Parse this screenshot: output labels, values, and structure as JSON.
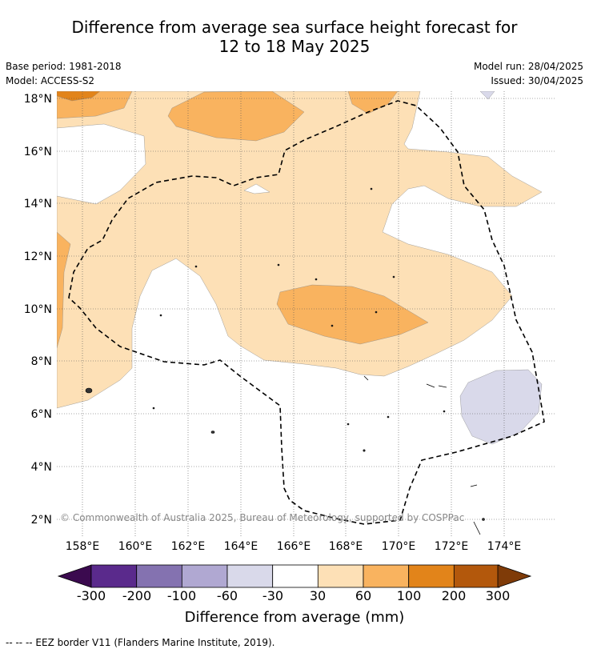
{
  "title_line1": "Difference from average sea surface height forecast for",
  "title_line2": "12 to 18 May 2025",
  "base_period": "Base period: 1981-2018",
  "model": "Model: ACCESS-S2",
  "model_run": "Model run: 28/04/2025",
  "issued": "Issued: 30/04/2025",
  "copyright": "© Commonwealth of Australia 2025, Bureau of Meteorology, supported by COSPPac",
  "lat_labels": [
    "18°N",
    "16°N",
    "14°N",
    "12°N",
    "10°N",
    "8°N",
    "6°N",
    "4°N",
    "2°N"
  ],
  "lon_labels": [
    "158°E",
    "160°E",
    "162°E",
    "164°E",
    "166°E",
    "168°E",
    "170°E",
    "172°E",
    "174°E"
  ],
  "colorbar": {
    "title": "Difference from average (mm)",
    "ticks": [
      "-300",
      "-200",
      "-100",
      "-60",
      "-30",
      "30",
      "60",
      "100",
      "200",
      "300"
    ],
    "colors": [
      "#3b0a4f",
      "#5a2a8c",
      "#8472b0",
      "#b0a8d2",
      "#d9d9ea",
      "#ffffff",
      "#fde0b6",
      "#f9b35f",
      "#e2841a",
      "#b3580c",
      "#7f3b08"
    ]
  },
  "legend_note": "--  --  -- EEZ border V11 (Flanders Marine Institute, 2019)."
}
